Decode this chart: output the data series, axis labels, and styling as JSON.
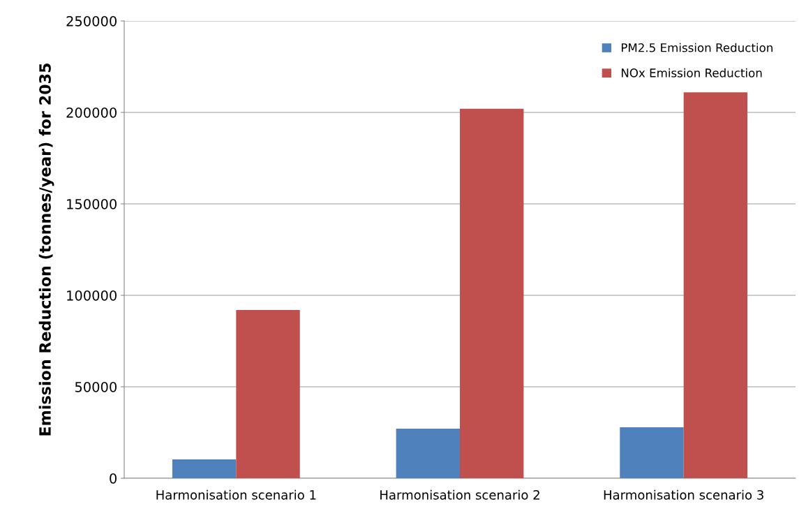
{
  "chart_data": {
    "type": "bar",
    "ylabel": "Emission Reduction (tonnes/year) for 2035",
    "categories": [
      "Harmonisation scenario 1",
      "Harmonisation scenario 2",
      "Harmonisation scenario 3"
    ],
    "series": [
      {
        "name": "PM2.5 Emission Reduction",
        "color": "#4f81bd",
        "values": [
          10300,
          27100,
          27900
        ]
      },
      {
        "name": "NOx Emission Reduction",
        "color": "#c0504d",
        "values": [
          92000,
          202000,
          211000
        ]
      }
    ],
    "ylim": [
      0,
      250000
    ],
    "yticks": [
      0,
      50000,
      100000,
      150000,
      200000,
      250000
    ],
    "grid": "y",
    "legend": "top right"
  }
}
